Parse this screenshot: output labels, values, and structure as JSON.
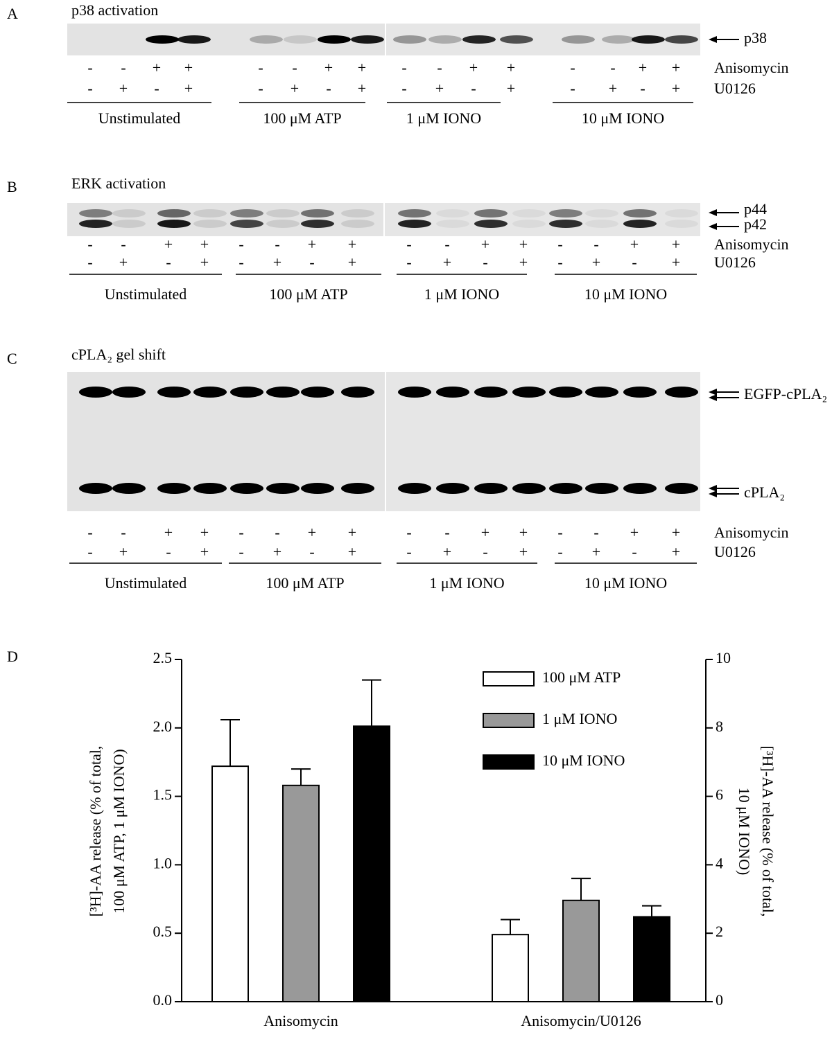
{
  "panels": [
    {
      "letter": "A",
      "title": "p38 activation",
      "bands": [
        "p38"
      ],
      "rows": [
        {
          "name": "Anisomycin",
          "signs": [
            "-",
            "-",
            "+",
            "+",
            "-",
            "-",
            "+",
            "+",
            "-",
            "-",
            "+",
            "+",
            "-",
            "-",
            "+",
            "+"
          ]
        },
        {
          "name": "U0126",
          "signs": [
            "-",
            "+",
            "-",
            "+",
            "-",
            "+",
            "-",
            "+",
            "-",
            "+",
            "-",
            "+",
            "-",
            "+",
            "-",
            "+"
          ]
        }
      ],
      "groups": [
        "Unstimulated",
        "100 μM ATP",
        "1 μM IONO",
        "10 μM IONO"
      ]
    },
    {
      "letter": "B",
      "title": "ERK activation",
      "bands": [
        "p44",
        "p42"
      ],
      "rows": [
        {
          "name": "Anisomycin",
          "signs": [
            "-",
            "-",
            "+",
            "+",
            "-",
            "-",
            "+",
            "+",
            "-",
            "-",
            "+",
            "+",
            "-",
            "-",
            "+",
            "+"
          ]
        },
        {
          "name": "U0126",
          "signs": [
            "-",
            "+",
            "-",
            "+",
            "-",
            "+",
            "-",
            "+",
            "-",
            "+",
            "-",
            "+",
            "-",
            "+",
            "-",
            "+"
          ]
        }
      ],
      "groups": [
        "Unstimulated",
        "100 μM ATP",
        "1 μM IONO",
        "10 μM IONO"
      ]
    },
    {
      "letter": "C",
      "title": "cPLA₂ gel shift",
      "bands": [
        "EGFP-cPLA₂",
        "cPLA₂"
      ],
      "rows": [
        {
          "name": "Anisomycin",
          "signs": [
            "-",
            "-",
            "+",
            "+",
            "-",
            "-",
            "+",
            "+",
            "-",
            "-",
            "+",
            "+",
            "-",
            "-",
            "+",
            "+"
          ]
        },
        {
          "name": "U0126",
          "signs": [
            "-",
            "+",
            "-",
            "+",
            "-",
            "+",
            "-",
            "+",
            "-",
            "+",
            "-",
            "+",
            "-",
            "+",
            "-",
            "+"
          ]
        }
      ],
      "groups": [
        "Unstimulated",
        "100 μM ATP",
        "1 μM IONO",
        "10 μM IONO"
      ]
    }
  ],
  "chart_data": {
    "type": "bar",
    "panel_label": "D",
    "categories": [
      "Anisomycin",
      "Anisomycin/U0126"
    ],
    "ylabel": [
      "[³H]-AA release (% of total,",
      "100 μM ATP, 1 μM IONO)"
    ],
    "y2label": [
      "[³H]-AA release (% of total,",
      "10 μM IONO)"
    ],
    "ylim": [
      0,
      2.5
    ],
    "yticks": [
      {
        "value": 0,
        "label": "0.0"
      },
      0.5,
      {
        "value": 1,
        "label": "1.0"
      },
      1.5,
      {
        "value": 2,
        "label": "2.0"
      },
      2.5
    ],
    "y2lim": [
      0,
      10
    ],
    "y2ticks": [
      0,
      2,
      4,
      6,
      8,
      10
    ],
    "series": [
      {
        "name": "100 μM ATP",
        "color": "#ffffff",
        "values": [
          1.72,
          0.49
        ],
        "errors": [
          0.34,
          0.11
        ]
      },
      {
        "name": "1 μM IONO",
        "color": "#999999",
        "values": [
          1.58,
          0.74
        ],
        "errors": [
          0.12,
          0.16
        ]
      },
      {
        "name": "10 μM IONO",
        "color": "#000000",
        "axis": "y2",
        "values": [
          8.05,
          2.48
        ],
        "errors": [
          1.35,
          0.32
        ]
      }
    ]
  }
}
